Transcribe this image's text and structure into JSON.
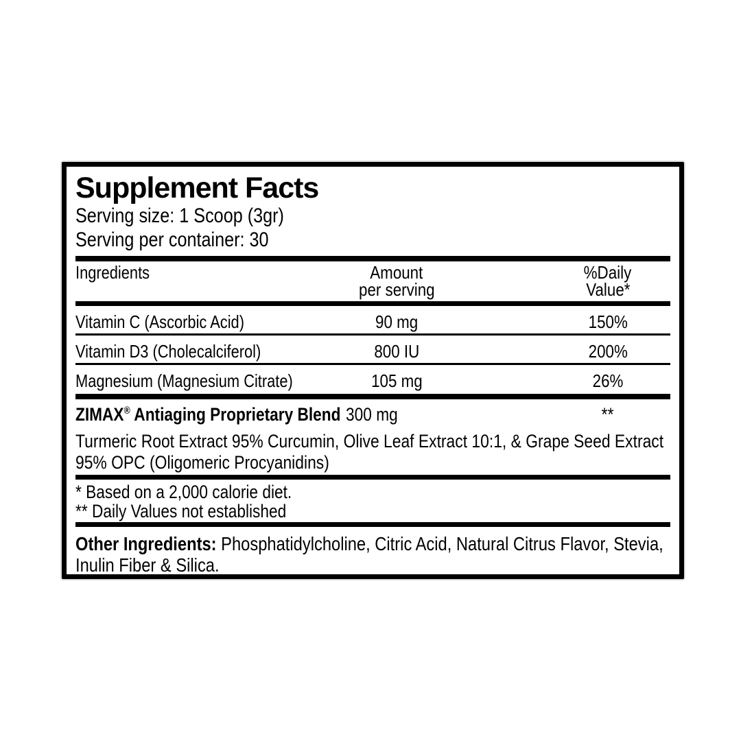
{
  "colors": {
    "ink": "#000000",
    "paper": "#ffffff"
  },
  "label": {
    "title": "Supplement Facts",
    "serving_size": "Serving size: 1 Scoop (3gr)",
    "servings_per_container": "Serving per container: 30",
    "table": {
      "headers": {
        "ingredients": "Ingredients",
        "amount_line1": "Amount",
        "amount_line2": "per serving",
        "dv_line1": "%Daily",
        "dv_line2": "Value*"
      },
      "rows": [
        {
          "name": "Vitamin C (Ascorbic Acid)",
          "amount": "90 mg",
          "dv": "150%"
        },
        {
          "name": "Vitamin D3 (Cholecalciferol)",
          "amount": "800 IU",
          "dv": "200%"
        },
        {
          "name": "Magnesium (Magnesium Citrate)",
          "amount": "105 mg",
          "dv": "26%"
        }
      ]
    },
    "blend": {
      "brand": "ZIMAX",
      "reg_mark": "®",
      "name_rest": " Antiaging Proprietary Blend",
      "amount": "300 mg",
      "dv": "**",
      "description": "Turmeric Root Extract 95% Curcumin, Olive Leaf Extract 10:1, & Grape Seed Extract 95% OPC (Oligomeric Procyanidins)"
    },
    "footnotes": [
      "* Based on a 2,000 calorie diet.",
      "** Daily Values not established"
    ],
    "other_ingredients": {
      "label": "Other Ingredients:",
      "text": " Phosphatidylcholine, Citric Acid, Natural Citrus Flavor, Stevia, Inulin Fiber & Silica."
    }
  }
}
